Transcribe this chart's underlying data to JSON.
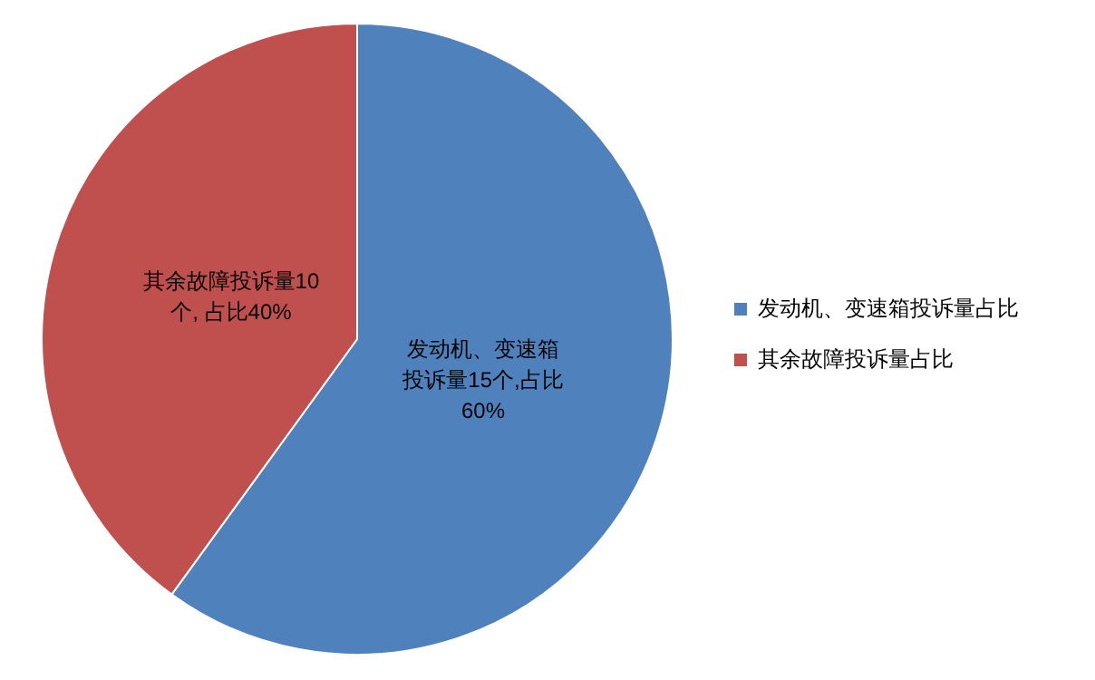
{
  "chart_data": {
    "type": "pie",
    "categories": [
      "发动机、变速箱投诉量占比",
      "其余故障投诉量占比"
    ],
    "values": [
      15,
      10
    ],
    "colors": [
      "#4f81bd",
      "#c0504d"
    ],
    "value_labels": [
      "发动机、变速箱投诉量15个,占比60%",
      "其余故障投诉量10个, 占比40%"
    ],
    "legend": "right"
  }
}
